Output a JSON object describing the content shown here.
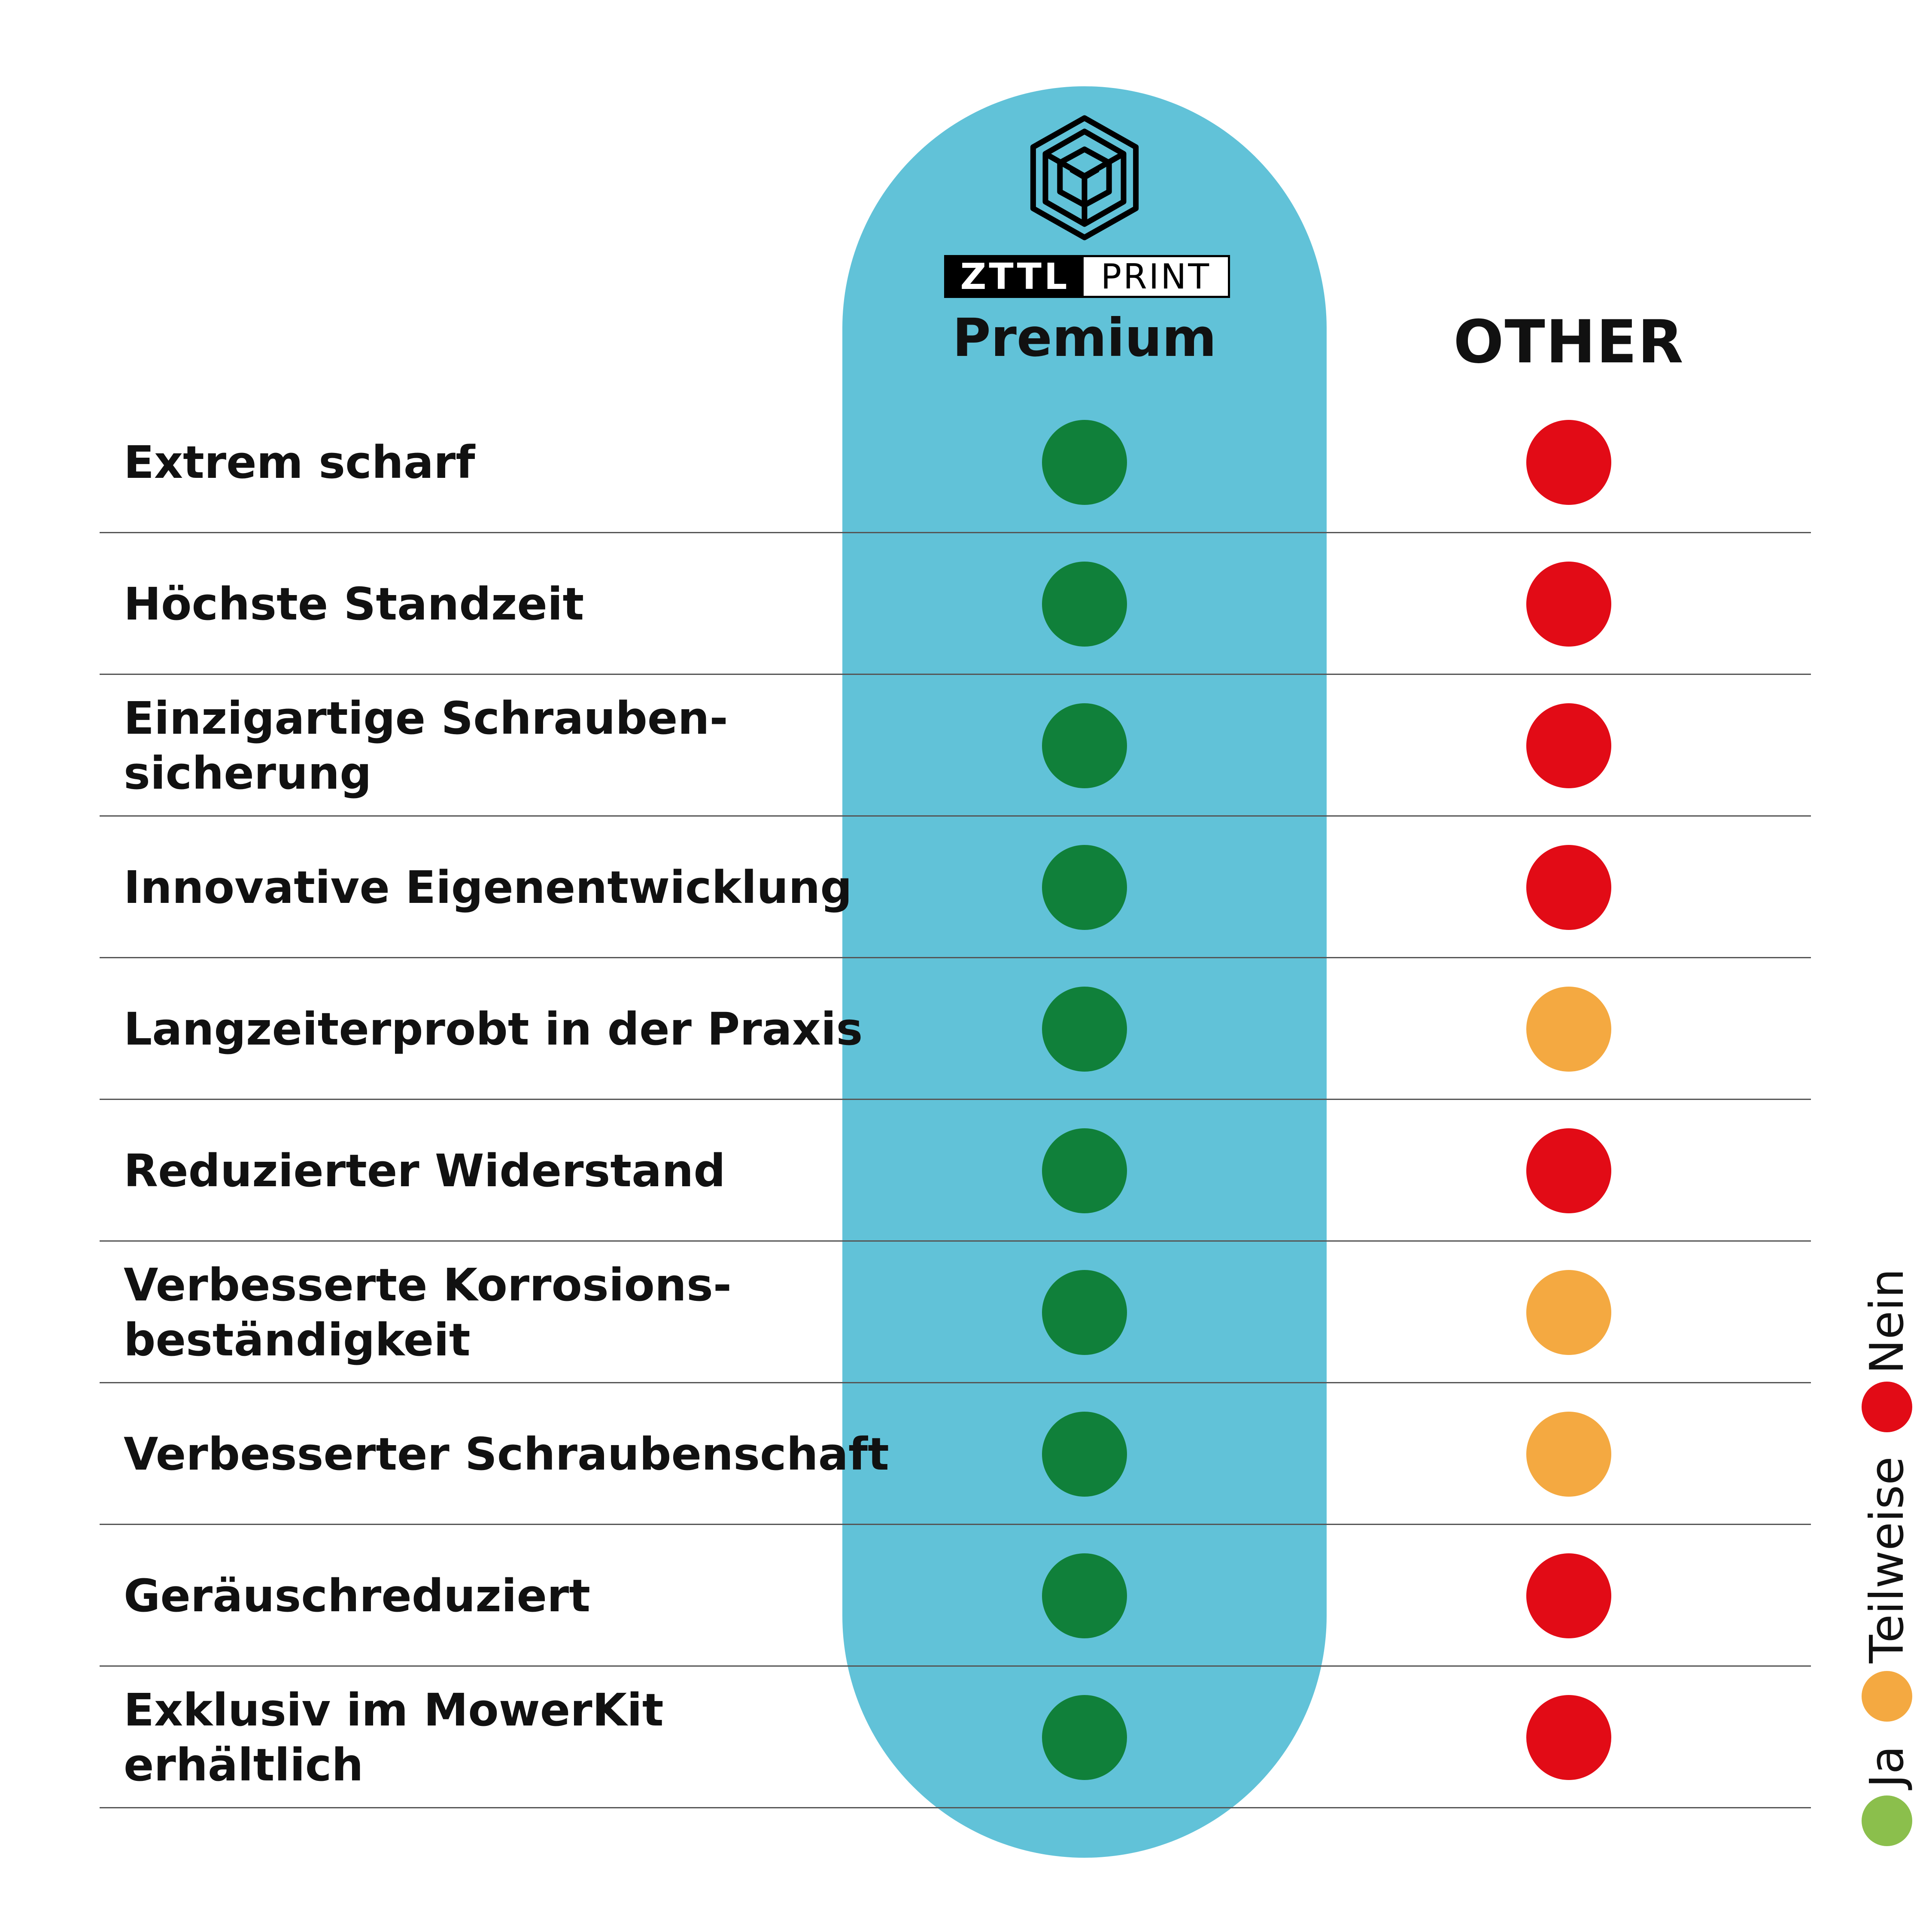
{
  "header": {
    "brand_left": "ZTTL",
    "brand_right": "PRINT",
    "premium_title": "Premium",
    "other_title": "OTHER"
  },
  "colors": {
    "pill": "#61c2d8",
    "ja": "#10803a",
    "nein": "#e20b16",
    "teilweise": "#f4a941",
    "legend_ja": "#8bbf4c"
  },
  "rows": [
    {
      "label": "Extrem scharf",
      "premium": "ja",
      "other": "nein"
    },
    {
      "label": "Höchste Standzeit",
      "premium": "ja",
      "other": "nein"
    },
    {
      "label": "Einzigartige Schrauben-\nsicherung",
      "premium": "ja",
      "other": "nein"
    },
    {
      "label": "Innovative Eigenentwicklung",
      "premium": "ja",
      "other": "nein"
    },
    {
      "label": "Langzeiterprobt in der Praxis",
      "premium": "ja",
      "other": "teilweise"
    },
    {
      "label": "Reduzierter Widerstand",
      "premium": "ja",
      "other": "nein"
    },
    {
      "label": "Verbesserte Korrosions-\nbeständigkeit",
      "premium": "ja",
      "other": "teilweise"
    },
    {
      "label": "Verbesserter Schraubenschaft",
      "premium": "ja",
      "other": "teilweise"
    },
    {
      "label": "Geräuschreduziert",
      "premium": "ja",
      "other": "nein"
    },
    {
      "label": "Exklusiv im MowerKit\nerhältlich",
      "premium": "ja",
      "other": "nein"
    }
  ],
  "legend": {
    "ja": "Ja",
    "teilweise": "Teilweise",
    "nein": "Nein"
  }
}
